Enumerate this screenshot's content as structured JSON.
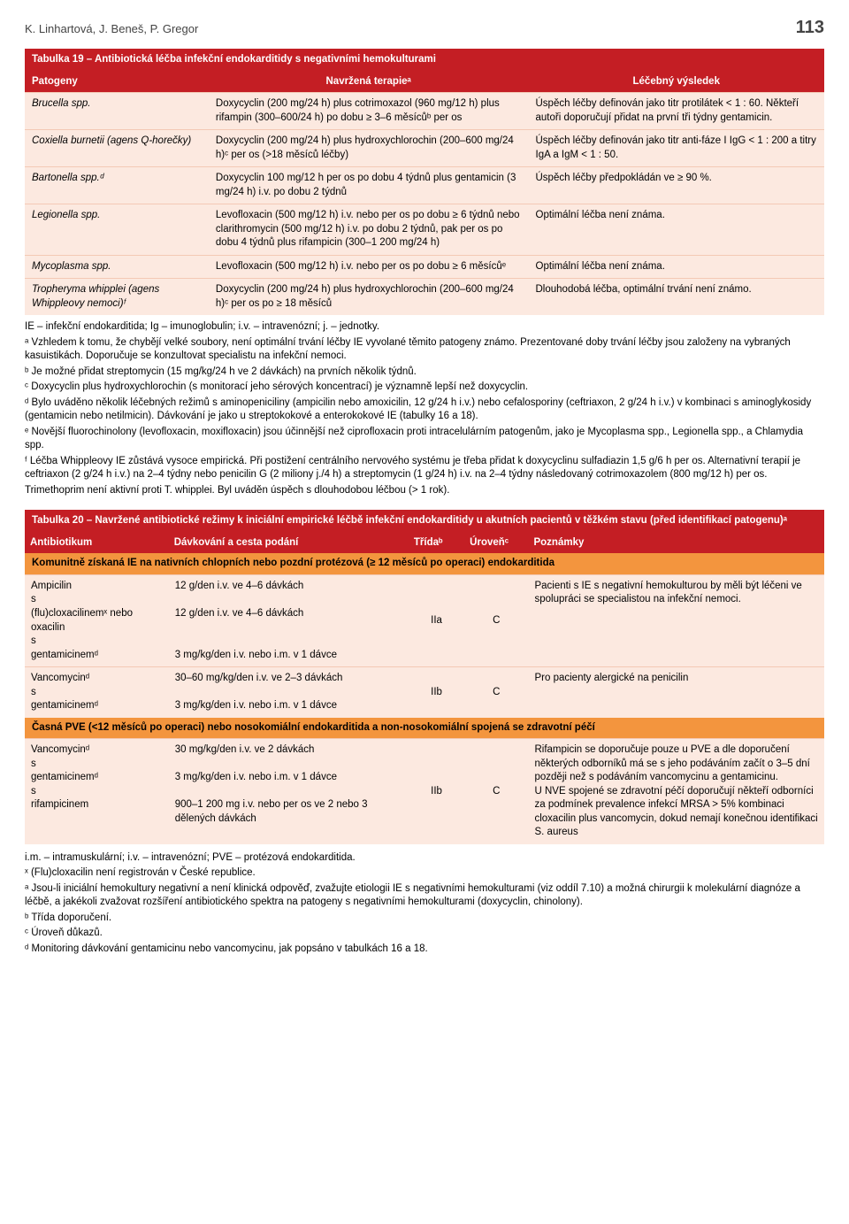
{
  "header": {
    "authors": "K. Linhartová, J. Beneš, P. Gregor",
    "pagenum": "113"
  },
  "t19": {
    "title": "Tabulka 19 – Antibiotická léčba infekční endokarditidy s negativními hemokulturami",
    "head": {
      "pathogens": "Patogeny",
      "therapy": "Navržená terapieᵃ",
      "result": "Léčebný výsledek"
    },
    "rows": [
      {
        "p": "Brucella spp.",
        "t": "Doxycyclin (200 mg/24 h) plus cotrimoxazol (960 mg/12 h) plus rifampin (300–600/24 h) po dobu ≥ 3–6 měsícůᵇ per os",
        "r": "Úspěch léčby definován jako titr protilátek < 1 : 60. Někteří autoři doporučují přidat na první tři týdny gentamicin."
      },
      {
        "p": "Coxiella burnetii (agens Q-horečky)",
        "t": "Doxycyclin (200 mg/24 h) plus hydroxychlorochin (200–600 mg/24 h)ᶜ per os (>18 měsíců léčby)",
        "r": "Úspěch léčby definován jako titr anti-fáze I IgG < 1 : 200 a titry IgA a IgM < 1 : 50."
      },
      {
        "p": "Bartonella spp.ᵈ",
        "t": "Doxycyclin 100 mg/12 h per os po dobu 4 týdnů plus gentamicin (3 mg/24 h) i.v. po dobu 2 týdnů",
        "r": "Úspěch léčby předpokládán ve ≥ 90 %."
      },
      {
        "p": "Legionella spp.",
        "t": "Levofloxacin (500 mg/12 h) i.v. nebo per os po dobu ≥ 6 týdnů nebo clarithromycin (500 mg/12 h) i.v. po dobu 2 týdnů, pak per os po dobu 4 týdnů plus rifampicin (300–1 200 mg/24 h)",
        "r": "Optimální léčba není známa."
      },
      {
        "p": "Mycoplasma spp.",
        "t": "Levofloxacin (500 mg/12 h) i.v. nebo per os po dobu ≥ 6 měsícůᵉ",
        "r": "Optimální léčba není známa."
      },
      {
        "p": "Tropheryma whipplei (agens Whippleovy nemoci)ᶠ",
        "t": "Doxycyclin (200 mg/24 h) plus hydroxychlorochin (200–600 mg/24 h)ᶜ per os po ≥ 18 měsíců",
        "r": "Dlouhodobá léčba, optimální trvání není známo."
      }
    ],
    "notes": [
      "IE – infekční endokarditida; Ig – imunoglobulin; i.v. – intravenózní; j. – jednotky.",
      "ᵃ Vzhledem k tomu, že chybějí velké soubory, není optimální trvání léčby IE vyvolané těmito patogeny známo. Prezentované doby trvání léčby jsou založeny na vybraných kasuistikách. Doporučuje se konzultovat specialistu na infekční nemoci.",
      "ᵇ Je možné přidat streptomycin (15 mg/kg/24 h ve 2 dávkách) na prvních několik týdnů.",
      "ᶜ Doxycyclin plus hydroxychlorochin (s monitorací jeho sérových koncentrací) je významně lepší než doxycyclin.",
      "ᵈ Bylo uváděno několik léčebných režimů s aminopeniciliny (ampicilin nebo amoxicilin, 12 g/24 h i.v.) nebo cefalosporiny (ceftriaxon, 2 g/24 h i.v.) v kombinaci s aminoglykosidy (gentamicin nebo netilmicin). Dávkování je jako u streptokokové a enterokokové IE (tabulky 16 a 18).",
      "ᵉ Novější fluorochinolony (levofloxacin, moxifloxacin) jsou účinnější než ciprofloxacin proti intracelulárním patogenům, jako je Mycoplasma spp., Legionella spp., a Chlamydia spp.",
      "ᶠ Léčba Whippleovy IE zůstává vysoce empirická. Při postižení centrálního nervového systému je třeba přidat k doxycyclinu sulfadiazin 1,5 g/6 h per os. Alternativní terapií je ceftriaxon (2 g/24 h i.v.) na 2–4 týdny nebo penicilin G (2 miliony j./4 h) a streptomycin (1 g/24 h) i.v. na 2–4 týdny následovaný cotrimoxazolem (800 mg/12 h) per os.",
      "Trimethoprim není aktivní proti T. whipplei. Byl uváděn úspěch s dlouhodobou léčbou (> 1 rok)."
    ]
  },
  "t20": {
    "title": "Tabulka 20 – Navržené antibiotické režimy k iniciální empirické léčbě infekční endokarditidy u akutních pacientů v těžkém stavu (před identifikací patogenu)ᵃ",
    "head": {
      "ab": "Antibiotikum",
      "dose": "Dávkování a cesta podání",
      "class": "Třídaᵇ",
      "level": "Úroveňᶜ",
      "notes": "Poznámky"
    },
    "section1": "Komunitně získaná IE na nativních chlopních nebo pozdní protézová (≥ 12 měsíců po operaci) endokarditida",
    "r1": {
      "ab": "Ampicilin\ns\n(flu)cloxacilinemˣ nebo oxacilin\ns\ngentamicinemᵈ",
      "dose": "12 g/den i.v. ve 4–6 dávkách\n\n12 g/den i.v. ve 4–6 dávkách\n\n\n3 mg/kg/den i.v. nebo i.m. v 1 dávce",
      "class": "IIa",
      "level": "C",
      "notes": "Pacienti s IE s negativní hemokulturou by měli být léčeni ve spolupráci se specialistou na infekční nemoci."
    },
    "r2": {
      "ab": "Vancomycinᵈ\ns\ngentamicinemᵈ",
      "dose": "30–60 mg/kg/den i.v. ve 2–3 dávkách\n\n3 mg/kg/den i.v. nebo i.m. v 1 dávce",
      "class": "IIb",
      "level": "C",
      "notes": "Pro pacienty alergické na penicilin"
    },
    "section2": "Časná PVE (<12 měsíců po operaci) nebo nosokomiální endokarditida a non-nosokomiální spojená se zdravotní péčí",
    "r3": {
      "ab": "Vancomycinᵈ\ns\ngentamicinemᵈ\ns\nrifampicinem",
      "dose": "30 mg/kg/den i.v. ve 2 dávkách\n\n3 mg/kg/den i.v. nebo i.m. v 1 dávce\n\n900–1 200 mg i.v. nebo per os ve 2 nebo 3 dělených dávkách",
      "class": "IIb",
      "level": "C",
      "notes": "Rifampicin se doporučuje pouze u PVE a dle doporučení některých odborníků má se s jeho podáváním začít o 3–5 dní později než s podáváním vancomycinu a gentamicinu.\nU NVE spojené se zdravotní péčí doporučují někteří odborníci za podmínek prevalence infekcí MRSA > 5% kombinaci cloxacilin plus vancomycin, dokud nemají konečnou identifikaci S. aureus"
    },
    "notes": [
      "i.m. – intramuskulární; i.v. – intravenózní; PVE – protézová endokarditida.",
      "ˣ (Flu)cloxacilin není registrován v České republice.",
      "ᵃ Jsou-li iniciální hemokultury negativní a není klinická odpověď, zvažujte etiologii IE s negativními hemokulturami (viz oddíl 7.10) a možná chirurgii k molekulární diagnóze a léčbě, a jakékoli zvažovat rozšíření antibiotického spektra na patogeny s negativními hemokulturami (doxycyclin, chinolony).",
      "ᵇ Třída doporučení.",
      "ᶜ Úroveň důkazů.",
      "ᵈ Monitoring dávkování gentamicinu nebo vancomycinu, jak popsáno v tabulkách 16 a 18."
    ]
  }
}
